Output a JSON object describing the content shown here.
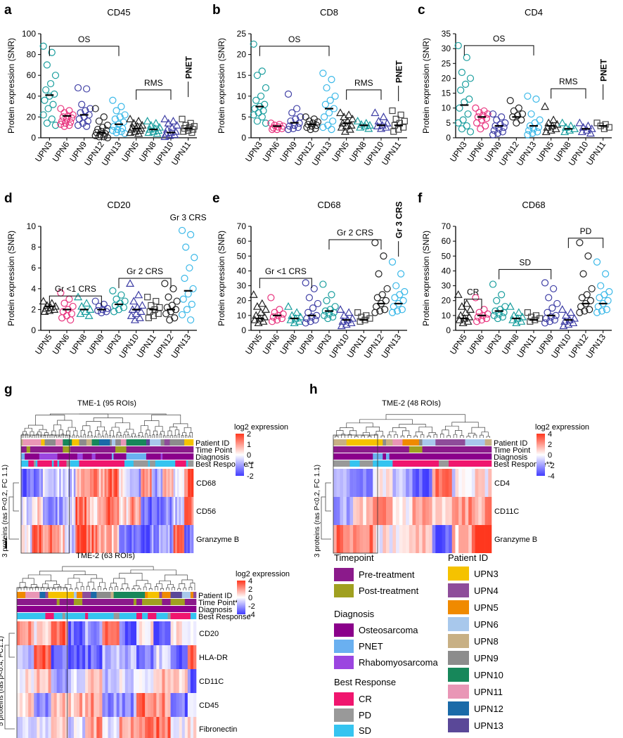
{
  "colors": {
    "UPN3": "#1a9e9e",
    "UPN6": "#e8347e",
    "UPN9": "#3f3fa5",
    "UPN12": "#222222",
    "UPN13": "#3ab8e8",
    "UPN5": "#222222",
    "UPN8": "#1a9e9e",
    "UPN10": "#3f3fa5",
    "UPN11": "#444444",
    "pretreat": "#8b1a8b",
    "posttreat": "#a0a020",
    "osteo": "#8b008b",
    "pnet": "#6ab0f0",
    "rms": "#9b45e0",
    "cr": "#f0156e",
    "pd": "#999999",
    "sd": "#35c4f0",
    "upn3": "#f5c200",
    "upn4": "#8e4d9a",
    "upn5": "#f08a00",
    "upn6": "#a8c8ec",
    "upn8": "#c8b084",
    "upn9": "#8c8c8c",
    "upn10": "#17875a",
    "upn11": "#e996b6",
    "upn12": "#1a6aa8",
    "upn13": "#5a4898"
  },
  "chart_data": [
    {
      "id": "a",
      "type": "scatter",
      "title": "CD45",
      "ylabel": "Protein expression (SNR)",
      "ylim": [
        0,
        100
      ],
      "yticks": [
        0,
        20,
        40,
        60,
        80,
        100
      ],
      "categories": [
        "UPN3",
        "UPN6",
        "UPN9",
        "UPN12",
        "UPN13",
        "UPN5",
        "UPN8",
        "UPN10",
        "UPN11"
      ],
      "markers": [
        "circle",
        "circle",
        "circle",
        "circle",
        "circle",
        "triangle",
        "triangle",
        "triangle",
        "square"
      ],
      "means": [
        41,
        21,
        22,
        5,
        13,
        9,
        8,
        5,
        9
      ],
      "values": [
        [
          88,
          82,
          70,
          60,
          52,
          46,
          42,
          40,
          36,
          32,
          28,
          22,
          18,
          14,
          12
        ],
        [
          28,
          26,
          24,
          22,
          21,
          20,
          19,
          18,
          16,
          15,
          14,
          13,
          12,
          11
        ],
        [
          48,
          47,
          32,
          28,
          26,
          24,
          22,
          20,
          18,
          16,
          14,
          12,
          11
        ],
        [
          28,
          20,
          16,
          12,
          10,
          8,
          7,
          6,
          5,
          4,
          3,
          2,
          1,
          1,
          0
        ],
        [
          36,
          30,
          26,
          22,
          20,
          18,
          15,
          13,
          11,
          9,
          8,
          7,
          6,
          5,
          4
        ],
        [
          18,
          16,
          14,
          12,
          11,
          10,
          9,
          9,
          8,
          7,
          6,
          5,
          4
        ],
        [
          16,
          14,
          12,
          10,
          9,
          8,
          7,
          6,
          5,
          4
        ],
        [
          18,
          16,
          14,
          12,
          10,
          8,
          6,
          5,
          4,
          3,
          2,
          1
        ],
        [
          18,
          14,
          12,
          11,
          10,
          9,
          8,
          7,
          6,
          5
        ]
      ],
      "groups": [
        {
          "label": "OS",
          "from": 0,
          "to": 4,
          "y": 88
        },
        {
          "label": "RMS",
          "from": 5,
          "to": 7,
          "y": 46
        },
        {
          "label": "PNET",
          "from": 8,
          "to": 8,
          "y": 54,
          "vertical": true
        }
      ]
    },
    {
      "id": "b",
      "type": "scatter",
      "title": "CD8",
      "ylabel": "Protein expression (SNR)",
      "ylim": [
        0,
        25
      ],
      "yticks": [
        0,
        5,
        10,
        15,
        20,
        25
      ],
      "categories": [
        "UPN3",
        "UPN6",
        "UPN9",
        "UPN12",
        "UPN13",
        "UPN5",
        "UPN8",
        "UPN10",
        "UPN11"
      ],
      "markers": [
        "circle",
        "circle",
        "circle",
        "circle",
        "circle",
        "triangle",
        "triangle",
        "triangle",
        "square"
      ],
      "means": [
        7.5,
        2.8,
        3.6,
        3.2,
        7,
        3.5,
        3,
        3,
        3
      ],
      "values": [
        [
          22.5,
          16,
          15,
          12,
          10,
          9,
          8,
          7.5,
          7,
          6.5,
          6,
          5.5,
          5,
          4,
          3.5
        ],
        [
          3.5,
          3.2,
          3,
          2.8,
          2.6,
          2.4,
          2.2,
          2,
          2
        ],
        [
          10.5,
          7,
          6,
          5,
          4.5,
          4,
          3.5,
          3,
          2.8,
          2.5,
          2.2,
          2
        ],
        [
          5,
          4.5,
          4,
          3.8,
          3.5,
          3.2,
          3,
          2.8,
          2.5,
          2.2,
          2
        ],
        [
          15.5,
          14,
          12,
          10,
          9,
          8,
          7,
          6,
          5,
          4,
          3,
          2.5,
          2
        ],
        [
          6,
          5.5,
          5,
          4.5,
          4,
          3.5,
          3,
          2.8,
          2.5,
          2,
          1.5
        ],
        [
          4,
          3.5,
          3.2,
          3,
          2.8,
          2.5,
          2.2
        ],
        [
          6,
          5,
          4,
          3.5,
          3,
          2.8,
          2.5,
          2.2
        ],
        [
          6.5,
          5.5,
          4.5,
          4,
          3.5,
          3,
          2.5,
          2,
          1.5
        ]
      ],
      "groups": [
        {
          "label": "OS",
          "from": 0,
          "to": 4,
          "y": 22
        },
        {
          "label": "RMS",
          "from": 5,
          "to": 7,
          "y": 11.5
        },
        {
          "label": "PNET",
          "from": 8,
          "to": 8,
          "y": 12.5,
          "vertical": true
        }
      ]
    },
    {
      "id": "c",
      "type": "scatter",
      "title": "CD4",
      "ylabel": "Protein expression (SNR)",
      "ylim": [
        0,
        35
      ],
      "yticks": [
        0,
        5,
        10,
        15,
        20,
        25,
        30,
        35
      ],
      "categories": [
        "UPN3",
        "UPN6",
        "UPN9",
        "UPN12",
        "UPN13",
        "UPN5",
        "UPN8",
        "UPN10",
        "UPN11"
      ],
      "markers": [
        "circle",
        "circle",
        "circle",
        "circle",
        "circle",
        "triangle",
        "triangle",
        "triangle",
        "square"
      ],
      "means": [
        11,
        7,
        4,
        7,
        4,
        4,
        3,
        3,
        4
      ],
      "values": [
        [
          31,
          27,
          22,
          20,
          18,
          16,
          13,
          12,
          10,
          8,
          6,
          5,
          4,
          3,
          2
        ],
        [
          10,
          9,
          8.5,
          8,
          7.5,
          7,
          6.5,
          6,
          5,
          4,
          3
        ],
        [
          8,
          7,
          6,
          5,
          4.5,
          4,
          3.5,
          3,
          2.5,
          2,
          1.5,
          1
        ],
        [
          12.5,
          10,
          9,
          8,
          7.5,
          7,
          6,
          5
        ],
        [
          14,
          13,
          8,
          6,
          5,
          4,
          3.5,
          3,
          2.5,
          2,
          1.5,
          1
        ],
        [
          10.5,
          6,
          5,
          4.5,
          4,
          3.5,
          3,
          2.5,
          2
        ],
        [
          5,
          4,
          3.5,
          3,
          2.5,
          2
        ],
        [
          5,
          4,
          3.5,
          3,
          2.5,
          2,
          1.5
        ],
        [
          5,
          4.5,
          4,
          3.5,
          3
        ]
      ],
      "groups": [
        {
          "label": "OS",
          "from": 0,
          "to": 4,
          "y": 31
        },
        {
          "label": "RMS",
          "from": 5,
          "to": 7,
          "y": 16.5
        },
        {
          "label": "PNET",
          "from": 8,
          "to": 8,
          "y": 18,
          "vertical": true
        }
      ]
    },
    {
      "id": "d",
      "type": "scatter",
      "title": "CD20",
      "ylabel": "Protein expression (SNR)",
      "ylim": [
        0,
        10
      ],
      "yticks": [
        0,
        2,
        4,
        6,
        8,
        10
      ],
      "categories": [
        "UPN5",
        "UPN6",
        "UPN8",
        "UPN9",
        "UPN3",
        "UPN10",
        "UPN11",
        "UPN12",
        "UPN13"
      ],
      "markers": [
        "triangle",
        "circle",
        "triangle",
        "circle",
        "circle",
        "triangle",
        "square",
        "circle",
        "circle"
      ],
      "means": [
        2.3,
        2,
        2,
        2,
        2.5,
        2,
        2,
        2,
        3.8
      ],
      "values": [
        [
          2.8,
          2.6,
          2.4,
          2.3,
          2.2,
          2.1,
          2,
          1.9,
          1.8
        ],
        [
          3.6,
          3,
          2.6,
          2.3,
          2,
          1.8,
          1.6,
          1.4,
          1.2,
          1
        ],
        [
          3.2,
          2.6,
          2.3,
          2,
          1.8,
          1.6,
          1.4
        ],
        [
          2.8,
          2.5,
          2.3,
          2.1,
          2,
          1.9,
          1.8,
          1.7
        ],
        [
          3.8,
          3.4,
          3,
          2.8,
          2.6,
          2.4,
          2.2,
          2,
          1.8
        ],
        [
          4.5,
          3.4,
          2.8,
          2.4,
          2.2,
          2,
          1.8,
          1.6,
          1.4,
          1.2,
          1
        ],
        [
          3.2,
          2.8,
          2.4,
          2.2,
          2,
          1.8,
          1.6,
          1.4,
          1.2
        ],
        [
          4.5,
          4,
          3.2,
          2.8,
          2.4,
          2.2,
          2,
          1.8,
          1.6,
          1.2,
          1
        ],
        [
          9.6,
          9.2,
          8,
          7,
          6,
          5,
          4,
          3.5,
          3,
          2.5,
          2,
          1.5,
          1
        ]
      ],
      "groups": [
        {
          "label": "Gr <1 CRS",
          "from": 0,
          "to": 3,
          "y": 3.3
        },
        {
          "label": "Gr 2 CRS",
          "from": 4,
          "to": 7,
          "y": 5
        },
        {
          "label": "Gr 3 CRS",
          "from": 8,
          "to": 8,
          "y": 10.3,
          "textonly": true
        }
      ]
    },
    {
      "id": "e",
      "type": "scatter",
      "title": "CD68",
      "ylabel": "Protein expression (SNR)",
      "ylim": [
        0,
        70
      ],
      "yticks": [
        0,
        10,
        20,
        30,
        40,
        50,
        60,
        70
      ],
      "categories": [
        "UPN5",
        "UPN6",
        "UPN8",
        "UPN9",
        "UPN3",
        "UPN10",
        "UPN11",
        "UPN12",
        "UPN13"
      ],
      "markers": [
        "triangle",
        "circle",
        "triangle",
        "circle",
        "circle",
        "triangle",
        "square",
        "circle",
        "circle"
      ],
      "means": [
        8,
        10,
        8,
        10,
        13,
        7,
        7,
        18,
        18
      ],
      "values": [
        [
          24,
          18,
          16,
          14,
          12,
          10,
          9,
          8,
          7,
          6,
          5
        ],
        [
          22,
          14,
          12,
          11,
          10,
          9,
          8,
          7,
          6
        ],
        [
          16,
          12,
          10,
          9,
          8,
          7,
          6,
          5
        ],
        [
          32,
          28,
          22,
          18,
          15,
          12,
          10,
          9,
          8,
          7,
          6,
          5
        ],
        [
          31,
          24,
          20,
          16,
          14,
          13,
          12,
          11,
          10,
          9,
          8
        ],
        [
          14,
          12,
          10,
          8,
          7,
          6,
          5,
          4,
          3
        ],
        [
          12,
          10,
          9,
          8,
          7,
          6
        ],
        [
          59,
          50,
          38,
          28,
          24,
          22,
          20,
          18,
          16,
          14,
          13,
          12
        ],
        [
          46,
          38,
          30,
          26,
          24,
          22,
          20,
          18,
          16,
          14,
          13,
          12
        ]
      ],
      "groups": [
        {
          "label": "Gr <1 CRS",
          "from": 0,
          "to": 3,
          "y": 35
        },
        {
          "label": "Gr 2 CRS",
          "from": 4,
          "to": 7,
          "y": 61
        },
        {
          "label": "Gr 3 CRS",
          "from": 8,
          "to": 8,
          "y": 60,
          "vertical": true
        }
      ]
    },
    {
      "id": "f",
      "type": "scatter",
      "title": "CD68",
      "ylabel": "Protein expression (SNR)",
      "ylim": [
        0,
        70
      ],
      "yticks": [
        0,
        10,
        20,
        30,
        40,
        50,
        60,
        70
      ],
      "categories": [
        "UPN5",
        "UPN6",
        "UPN3",
        "UPN8",
        "UPN11",
        "UPN9",
        "UPN10",
        "UPN12",
        "UPN13"
      ],
      "markers": [
        "triangle",
        "circle",
        "circle",
        "triangle",
        "square",
        "circle",
        "triangle",
        "circle",
        "circle"
      ],
      "means": [
        8,
        10,
        13,
        8,
        7,
        10,
        7,
        18,
        18
      ],
      "values": [
        [
          24,
          18,
          16,
          14,
          12,
          10,
          9,
          8,
          7,
          6,
          5
        ],
        [
          22,
          14,
          12,
          11,
          10,
          9,
          8,
          7,
          6
        ],
        [
          31,
          24,
          20,
          16,
          14,
          13,
          12,
          11,
          10,
          9,
          8
        ],
        [
          16,
          12,
          10,
          9,
          8,
          7,
          6,
          5
        ],
        [
          12,
          10,
          9,
          8,
          7,
          6
        ],
        [
          32,
          28,
          22,
          18,
          15,
          12,
          10,
          9,
          8,
          7,
          6,
          5
        ],
        [
          14,
          12,
          10,
          8,
          7,
          6,
          5,
          4,
          3
        ],
        [
          59,
          50,
          38,
          28,
          24,
          22,
          20,
          18,
          16,
          14,
          13,
          12
        ],
        [
          46,
          38,
          30,
          26,
          24,
          22,
          20,
          18,
          16,
          14,
          13,
          12
        ]
      ],
      "groups": [
        {
          "label": "CR",
          "from": 0,
          "to": 1,
          "y": 21
        },
        {
          "label": "SD",
          "from": 2,
          "to": 5,
          "y": 41
        },
        {
          "label": "PD",
          "from": 6,
          "to": 8,
          "y": 62
        }
      ]
    },
    {
      "id": "g",
      "type": "heatmap",
      "title": "TME-1 (95 ROIs)",
      "ncols": 95,
      "rows": [
        "CD68",
        "CD56",
        "Granzyme B"
      ],
      "annotations": [
        "Patient ID",
        "Time Point",
        "Diagnosis",
        "Best Response**"
      ],
      "ylabel": "3 proteins (ras P<0.2, FC 1.1)",
      "legend_title": "log2 expression",
      "legend_ticks": [
        "2",
        "1",
        "0",
        "-1",
        "-2"
      ]
    },
    {
      "id": "h",
      "type": "heatmap",
      "title": "TME-2 (48 ROIs)",
      "ncols": 48,
      "rows": [
        "CD4",
        "CD11C",
        "Granzyme B"
      ],
      "annotations": [
        "Patient ID",
        "Time Point",
        "Diagnosis",
        "Best Response**"
      ],
      "ylabel": "3 proteins (ras P<0.2, FC 1.1)",
      "legend_title": "log2 expression",
      "legend_ticks": [
        "4",
        "2",
        "0",
        "-2",
        "-4"
      ]
    },
    {
      "id": "i",
      "type": "heatmap",
      "title": "TME-2 (63 ROIs)",
      "ncols": 63,
      "rows": [
        "CD20",
        "HLA-DR",
        "CD11C",
        "CD45",
        "Fibronectin"
      ],
      "annotations": [
        "Patient ID",
        "Time Point**",
        "Diagnosis",
        "Best Response"
      ],
      "ylabel": "5 proteins (ras p<0.4, FC1.1)",
      "legend_title": "log2 expression",
      "legend_ticks": [
        "4",
        "2",
        "0",
        "-2",
        "-4"
      ]
    }
  ],
  "legend": {
    "timepoint_title": "Timepoint",
    "timepoint": [
      "Pre-treatment",
      "Post-treatment"
    ],
    "diagnosis_title": "Diagnosis",
    "diagnosis": [
      "Osteosarcoma",
      "PNET",
      "Rhabomyosarcoma"
    ],
    "response_title": "Best Response",
    "response": [
      "CR",
      "PD",
      "SD"
    ],
    "patient_title": "Patient ID",
    "patients": [
      "UPN3",
      "UPN4",
      "UPN5",
      "UPN6",
      "UPN8",
      "UPN9",
      "UPN10",
      "UPN11",
      "UPN12",
      "UPN13"
    ]
  }
}
